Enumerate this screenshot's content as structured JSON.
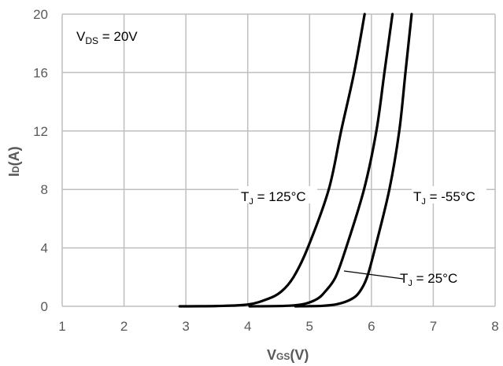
{
  "chart_data": {
    "type": "line",
    "xlabel": {
      "main": "V",
      "sub": "GS",
      "unit": "(V)"
    },
    "ylabel": {
      "main": "I",
      "sub": "D",
      "unit": "(A)"
    },
    "xlim": [
      1,
      8
    ],
    "ylim": [
      0,
      20
    ],
    "xticks": [
      "1",
      "2",
      "3",
      "4",
      "5",
      "6",
      "7",
      "8"
    ],
    "yticks": [
      "0",
      "4",
      "8",
      "12",
      "16",
      "20"
    ],
    "grid": true,
    "colors": {
      "grid": "#bfbfbf",
      "line": "#000000",
      "tick": "#595959"
    },
    "condition": {
      "main": "V",
      "sub": "DS",
      "rest": " = 20V"
    },
    "series": [
      {
        "name": "125°C",
        "label": {
          "main": "T",
          "sub": "J",
          "rest": " = 125°C"
        },
        "x": [
          2.9,
          3.5,
          4.0,
          4.32,
          4.54,
          4.74,
          4.97,
          5.31,
          5.51,
          5.72,
          5.89
        ],
        "y": [
          0,
          0.02,
          0.12,
          0.5,
          1,
          2,
          4,
          8,
          12,
          16,
          20
        ]
      },
      {
        "name": "25°C",
        "label": {
          "main": "T",
          "sub": "J",
          "rest": " = 25°C"
        },
        "x": [
          4.03,
          4.6,
          4.9,
          5.12,
          5.25,
          5.42,
          5.59,
          5.88,
          6.08,
          6.21,
          6.34
        ],
        "y": [
          0,
          0.03,
          0.15,
          0.5,
          1,
          2,
          4,
          8,
          12,
          16,
          20
        ]
      },
      {
        "name": "-55°C",
        "label": {
          "main": "T",
          "sub": "J",
          "rest": " = -55°C"
        },
        "x": [
          4.77,
          5.2,
          5.45,
          5.68,
          5.81,
          5.93,
          6.06,
          6.29,
          6.45,
          6.55,
          6.65
        ],
        "y": [
          0,
          0.03,
          0.15,
          0.5,
          1,
          2,
          4,
          8,
          12,
          16,
          20
        ]
      }
    ]
  }
}
